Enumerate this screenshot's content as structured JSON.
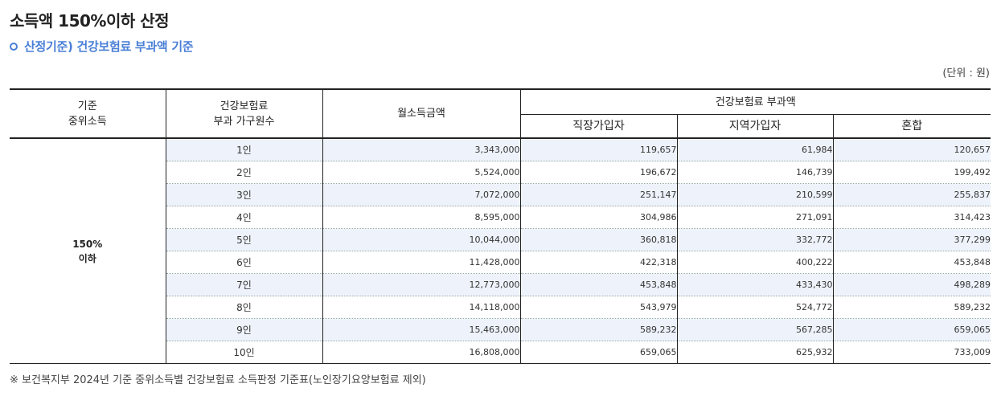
{
  "title": "소득액 150%이하 산정",
  "subtitle": "산정기준) 건강보험료 부과액 기준",
  "unit": "(단위 : 원)",
  "table": {
    "headers": {
      "median_line1": "기준",
      "median_line2": "중위소득",
      "household_line1": "건강보험료",
      "household_line2": "부과 가구원수",
      "income": "월소득금액",
      "premium_group": "건강보험료 부과액",
      "employee": "직장가입자",
      "regional": "지역가입자",
      "mixed": "혼합"
    },
    "median_line1": "150%",
    "median_line2": "이하",
    "rows": [
      {
        "household": "1인",
        "income": "3,343,000",
        "employee": "119,657",
        "regional": "61,984",
        "mixed": "120,657"
      },
      {
        "household": "2인",
        "income": "5,524,000",
        "employee": "196,672",
        "regional": "146,739",
        "mixed": "199,492"
      },
      {
        "household": "3인",
        "income": "7,072,000",
        "employee": "251,147",
        "regional": "210,599",
        "mixed": "255,837"
      },
      {
        "household": "4인",
        "income": "8,595,000",
        "employee": "304,986",
        "regional": "271,091",
        "mixed": "314,423"
      },
      {
        "household": "5인",
        "income": "10,044,000",
        "employee": "360,818",
        "regional": "332,772",
        "mixed": "377,299"
      },
      {
        "household": "6인",
        "income": "11,428,000",
        "employee": "422,318",
        "regional": "400,222",
        "mixed": "453,848"
      },
      {
        "household": "7인",
        "income": "12,773,000",
        "employee": "453,848",
        "regional": "433,430",
        "mixed": "498,289"
      },
      {
        "household": "8인",
        "income": "14,118,000",
        "employee": "543,979",
        "regional": "524,772",
        "mixed": "589,232"
      },
      {
        "household": "9인",
        "income": "15,463,000",
        "employee": "589,232",
        "regional": "567,285",
        "mixed": "659,065"
      },
      {
        "household": "10인",
        "income": "16,808,000",
        "employee": "659,065",
        "regional": "625,932",
        "mixed": "733,009"
      }
    ]
  },
  "footnote": "※ 보건복지부 2024년 기준 중위소득별 건강보험료 소득판정 기준표(노인장기요양보험료 제외)"
}
